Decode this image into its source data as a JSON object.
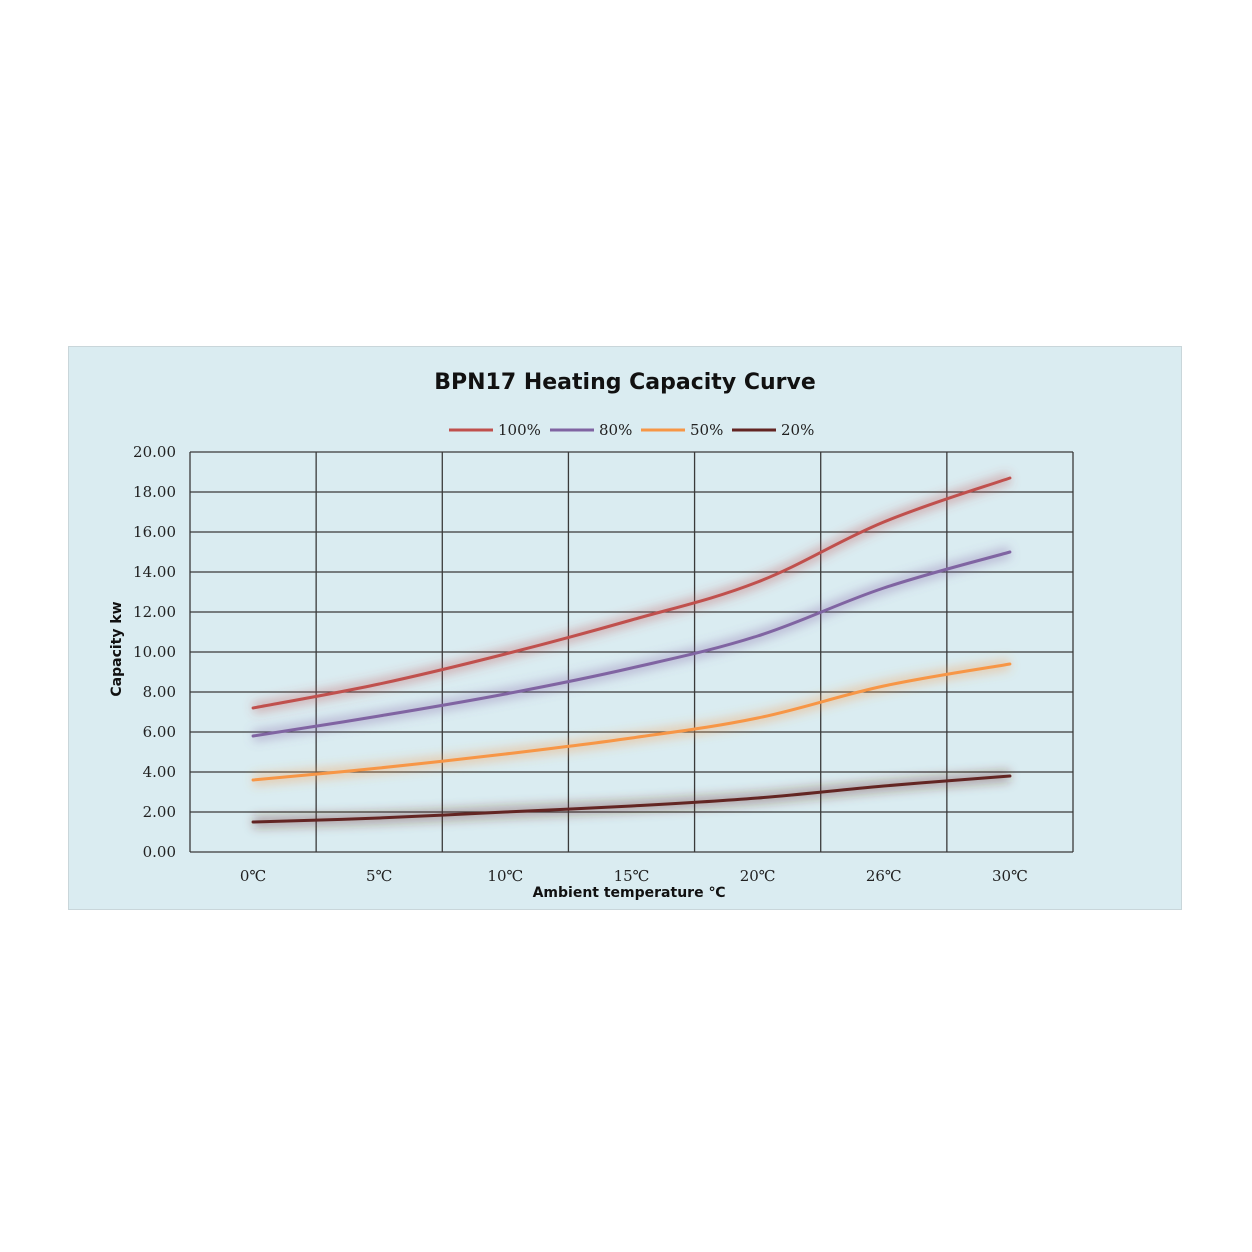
{
  "chart_data": {
    "type": "line",
    "title": "BPN17 Heating Capacity Curve",
    "xlabel": "Ambient temperature ℃",
    "ylabel": "Capacity kw",
    "categories": [
      "0℃",
      "5℃",
      "10℃",
      "15℃",
      "20℃",
      "26℃",
      "30℃"
    ],
    "y_ticks": [
      "0.00",
      "2.00",
      "4.00",
      "6.00",
      "8.00",
      "10.00",
      "12.00",
      "14.00",
      "16.00",
      "18.00",
      "20.00"
    ],
    "ylim": [
      0,
      20
    ],
    "grid": true,
    "legend_position": "top",
    "series": [
      {
        "name": "100%",
        "color": "#c0504d",
        "values": [
          7.2,
          8.4,
          9.9,
          11.6,
          13.5,
          16.5,
          18.7
        ]
      },
      {
        "name": "80%",
        "color": "#8064a2",
        "values": [
          5.8,
          6.8,
          7.9,
          9.2,
          10.8,
          13.2,
          15.0
        ]
      },
      {
        "name": "50%",
        "color": "#f79646",
        "values": [
          3.6,
          4.2,
          4.9,
          5.7,
          6.7,
          8.3,
          9.4
        ]
      },
      {
        "name": "20%",
        "color": "#632523",
        "values": [
          1.5,
          1.7,
          2.0,
          2.3,
          2.7,
          3.3,
          3.8
        ]
      }
    ]
  }
}
